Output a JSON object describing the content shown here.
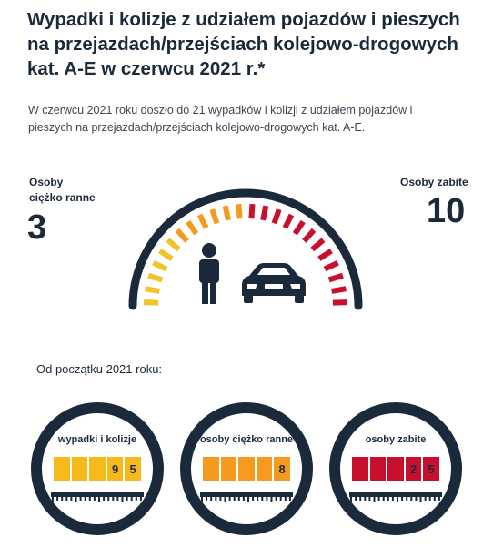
{
  "header": {
    "title_line1": "Wypadki i kolizje z udziałem pojazdów i pieszych",
    "title_line2": "na przejazdach/przejściach kolejowo-drogowych",
    "title_line3": "kat. A-E w czerwcu 2021 r.*"
  },
  "intro": {
    "line1": "W czerwcu 2021 roku doszło do 21 wypadków i kolizji z udziałem pojazdów i",
    "line2": "pieszych na przejazdach/przejściach kolejowo-drogowych kat. A-E."
  },
  "injured": {
    "label_line1": "Osoby",
    "label_line2": "ciężko ranne",
    "value": "3"
  },
  "killed": {
    "label": "Osoby zabite",
    "value": "10"
  },
  "gauge": {
    "colors": [
      "#f4c32b",
      "#f59a1f",
      "#c8102e"
    ],
    "person_icon": "person-icon",
    "car_icon": "car-icon"
  },
  "since_label": "Od początku 2021 roku:",
  "counters": [
    {
      "label": "wypadki i kolizje",
      "color": "#f7b81a",
      "digits": [
        "",
        "",
        "",
        "9",
        "5"
      ]
    },
    {
      "label": "osoby ciężko ranne",
      "color": "#f59a1f",
      "digits": [
        "",
        "",
        "",
        "",
        "8"
      ]
    },
    {
      "label": "osoby zabite",
      "color": "#c8102e",
      "digits": [
        "",
        "",
        "",
        "2",
        "5"
      ]
    }
  ]
}
